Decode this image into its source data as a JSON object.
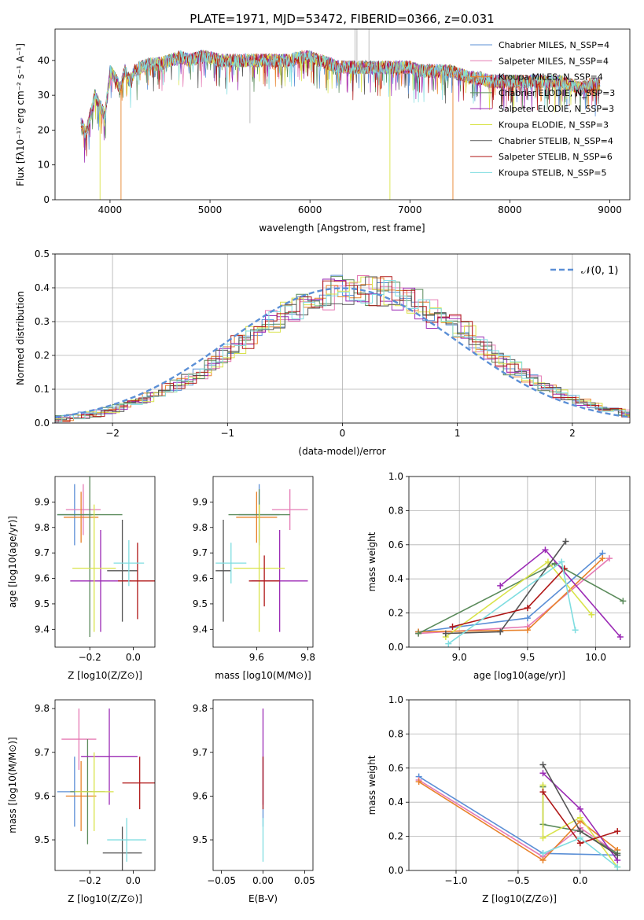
{
  "chart_data": [
    {
      "type": "line",
      "title": "PLATE=1971, MJD=53472, FIBERID=0366, z=0.031",
      "xlabel": "wavelength [Angstrom, rest frame]",
      "ylabel": "Flux [f_λ 10^-17 erg cm^-2 s^-1 A^-1]",
      "xlim": [
        3450,
        9200
      ],
      "ylim": [
        0,
        49
      ],
      "xticks": [
        4000,
        5000,
        6000,
        7000,
        8000,
        9000
      ],
      "yticks": [
        0,
        10,
        20,
        30,
        40
      ],
      "legend_position": "top-right",
      "spectrum_envelope": {
        "x": [
          3710,
          3760,
          3800,
          3850,
          3900,
          3950,
          4000,
          4050,
          4100,
          4150,
          4200,
          4250,
          4300,
          4400,
          4500,
          4600,
          4700,
          4800,
          4900,
          5000,
          5100,
          5200,
          5300,
          5400,
          5500,
          5600,
          5700,
          5800,
          5900,
          6000,
          6100,
          6200,
          6300,
          6400,
          6500,
          6600,
          6700,
          6800,
          6900,
          7000,
          7100,
          7200,
          7300,
          7400,
          7500,
          7600,
          7700,
          7800,
          7900,
          8000,
          8100,
          8200,
          8300,
          8400,
          8500,
          8600,
          8700,
          8800,
          8900
        ],
        "y": [
          22,
          19,
          24,
          30,
          27,
          24,
          37,
          35,
          32,
          37,
          34,
          37,
          38,
          39,
          39,
          40,
          41,
          40,
          41,
          41,
          40,
          40,
          40,
          40,
          40,
          40,
          40,
          40,
          41,
          41,
          40,
          39,
          38,
          38,
          38,
          38,
          38,
          38,
          38,
          38,
          37,
          37,
          37,
          37,
          36,
          35,
          35,
          34,
          34,
          34,
          34,
          34,
          34,
          34,
          34,
          33,
          32,
          33,
          33
        ]
      },
      "series": [
        {
          "name": "Chabrier MILES, N_SSP=4",
          "color": "#5b8fd6"
        },
        {
          "name": "Salpeter MILES, N_SSP=4",
          "color": "#e57ab4"
        },
        {
          "name": "Kroupa MILES, N_SSP=4",
          "color": "#e8822a"
        },
        {
          "name": "Chabrier ELODIE, N_SSP=3",
          "color": "#5a8a5a"
        },
        {
          "name": "Salpeter ELODIE, N_SSP=3",
          "color": "#9b2ab5"
        },
        {
          "name": "Kroupa ELODIE, N_SSP=3",
          "color": "#d9e34a"
        },
        {
          "name": "Chabrier STELIB, N_SSP=4",
          "color": "#555555"
        },
        {
          "name": "Salpeter STELIB, N_SSP=6",
          "color": "#b01818"
        },
        {
          "name": "Kroupa STELIB, N_SSP=5",
          "color": "#7fdde0"
        }
      ]
    },
    {
      "type": "bar",
      "xlabel": "(data-model)/error",
      "ylabel": "Normed distribution",
      "xlim": [
        -2.5,
        2.5
      ],
      "ylim": [
        0,
        0.5
      ],
      "xticks": [
        -2,
        -1,
        0,
        1,
        2
      ],
      "yticks": [
        0.0,
        0.1,
        0.2,
        0.3,
        0.4,
        0.5
      ],
      "grid": true,
      "legend_position": "top-right",
      "reference": {
        "name": "𝒩(0, 1)",
        "color": "#5b8fd6",
        "mean": 0,
        "sigma": 1
      }
    },
    {
      "type": "scatter",
      "xlabel": "Z [log10(Z/Z⊙)]",
      "ylabel": "age [log10(age/yr)]",
      "xlim": [
        -0.36,
        0.1
      ],
      "ylim": [
        9.33,
        10.0
      ],
      "xticks": [
        -0.2,
        0.0
      ],
      "yticks": [
        9.4,
        9.5,
        9.6,
        9.7,
        9.8,
        9.9
      ],
      "points": [
        {
          "series": "Chabrier MILES",
          "x": -0.27,
          "xerr": 0.08,
          "y": 9.85,
          "yerr": 0.12
        },
        {
          "series": "Salpeter MILES",
          "x": -0.23,
          "xerr": 0.08,
          "y": 9.87,
          "yerr": 0.1
        },
        {
          "series": "Kroupa MILES",
          "x": -0.24,
          "xerr": 0.08,
          "y": 9.84,
          "yerr": 0.1
        },
        {
          "series": "Chabrier ELODIE",
          "x": -0.2,
          "xerr": 0.15,
          "y": 9.85,
          "yerr": 0.48
        },
        {
          "series": "Salpeter ELODIE",
          "x": -0.15,
          "xerr": 0.14,
          "y": 9.59,
          "yerr": 0.2
        },
        {
          "series": "Kroupa ELODIE",
          "x": -0.18,
          "xerr": 0.1,
          "y": 9.64,
          "yerr": 0.25
        },
        {
          "series": "Chabrier STELIB",
          "x": -0.05,
          "xerr": 0.07,
          "y": 9.63,
          "yerr": 0.2
        },
        {
          "series": "Salpeter STELIB",
          "x": 0.02,
          "xerr": 0.09,
          "y": 9.59,
          "yerr": 0.15
        },
        {
          "series": "Kroupa STELIB",
          "x": -0.02,
          "xerr": 0.07,
          "y": 9.66,
          "yerr": 0.09
        }
      ]
    },
    {
      "type": "scatter",
      "xlabel": "mass [log10(M/M⊙)]",
      "ylabel": "",
      "xlim": [
        9.43,
        9.82
      ],
      "ylim": [
        9.33,
        10.0
      ],
      "xticks": [
        9.6,
        9.8
      ],
      "yticks": [
        9.4,
        9.5,
        9.6,
        9.7,
        9.8,
        9.9
      ],
      "points": [
        {
          "series": "Chabrier MILES",
          "x": 9.61,
          "xerr": 0.08,
          "y": 9.85,
          "yerr": 0.12
        },
        {
          "series": "Salpeter MILES",
          "x": 9.73,
          "xerr": 0.07,
          "y": 9.87,
          "yerr": 0.08
        },
        {
          "series": "Kroupa MILES",
          "x": 9.6,
          "xerr": 0.08,
          "y": 9.84,
          "yerr": 0.1
        },
        {
          "series": "Chabrier ELODIE",
          "x": 9.61,
          "xerr": 0.12,
          "y": 9.85,
          "yerr": 0.1
        },
        {
          "series": "Salpeter ELODIE",
          "x": 9.69,
          "xerr": 0.11,
          "y": 9.59,
          "yerr": 0.2
        },
        {
          "series": "Kroupa ELODIE",
          "x": 9.61,
          "xerr": 0.1,
          "y": 9.64,
          "yerr": 0.25
        },
        {
          "series": "Chabrier STELIB",
          "x": 9.47,
          "xerr": 0.03,
          "y": 9.63,
          "yerr": 0.2
        },
        {
          "series": "Salpeter STELIB",
          "x": 9.63,
          "xerr": 0.06,
          "y": 9.59,
          "yerr": 0.1
        },
        {
          "series": "Kroupa STELIB",
          "x": 9.5,
          "xerr": 0.06,
          "y": 9.66,
          "yerr": 0.08
        }
      ]
    },
    {
      "type": "line",
      "xlabel": "age [log10(age/yr)]",
      "ylabel": "mass weight",
      "xlim": [
        8.63,
        10.25
      ],
      "ylim": [
        0,
        1
      ],
      "xticks": [
        9.0,
        9.5,
        10.0
      ],
      "yticks": [
        0.0,
        0.2,
        0.4,
        0.6,
        0.8,
        1.0
      ],
      "grid": true,
      "series": [
        {
          "name": "Chabrier MILES",
          "x": [
            8.7,
            9.5,
            10.05
          ],
          "y": [
            0.09,
            0.17,
            0.55
          ]
        },
        {
          "name": "Salpeter MILES",
          "x": [
            8.7,
            9.5,
            10.1
          ],
          "y": [
            0.08,
            0.12,
            0.52
          ]
        },
        {
          "name": "Kroupa MILES",
          "x": [
            8.7,
            9.5,
            10.05
          ],
          "y": [
            0.09,
            0.1,
            0.52
          ]
        },
        {
          "name": "Chabrier ELODIE",
          "x": [
            8.7,
            9.7,
            10.2
          ],
          "y": [
            0.08,
            0.49,
            0.27
          ]
        },
        {
          "name": "Salpeter ELODIE",
          "x": [
            9.3,
            9.63,
            10.18
          ],
          "y": [
            0.36,
            0.57,
            0.06
          ]
        },
        {
          "name": "Kroupa ELODIE",
          "x": [
            8.9,
            9.65,
            9.97
          ],
          "y": [
            0.06,
            0.5,
            0.19
          ]
        },
        {
          "name": "Chabrier STELIB",
          "x": [
            8.9,
            9.3,
            9.78
          ],
          "y": [
            0.08,
            0.09,
            0.62
          ]
        },
        {
          "name": "Salpeter STELIB",
          "x": [
            8.95,
            9.5,
            9.77
          ],
          "y": [
            0.12,
            0.23,
            0.46
          ]
        },
        {
          "name": "Kroupa STELIB",
          "x": [
            8.92,
            9.75,
            9.85
          ],
          "y": [
            0.02,
            0.5,
            0.1
          ]
        }
      ]
    },
    {
      "type": "scatter",
      "xlabel": "Z [log10(Z/Z⊙)]",
      "ylabel": "mass [log10(M/M⊙)]",
      "xlim": [
        -0.36,
        0.1
      ],
      "ylim": [
        9.43,
        9.82
      ],
      "xticks": [
        -0.2,
        0.0
      ],
      "yticks": [
        9.5,
        9.6,
        9.7,
        9.8
      ],
      "points": [
        {
          "series": "Chabrier MILES",
          "x": -0.27,
          "xerr": 0.08,
          "y": 9.61,
          "yerr": 0.08
        },
        {
          "series": "Salpeter MILES",
          "x": -0.25,
          "xerr": 0.08,
          "y": 9.73,
          "yerr": 0.07
        },
        {
          "series": "Kroupa MILES",
          "x": -0.24,
          "xerr": 0.07,
          "y": 9.6,
          "yerr": 0.08
        },
        {
          "series": "Chabrier ELODIE",
          "x": -0.21,
          "xerr": 0.08,
          "y": 9.61,
          "yerr": 0.12
        },
        {
          "series": "Salpeter ELODIE",
          "x": -0.11,
          "xerr": 0.13,
          "y": 9.69,
          "yerr": 0.11
        },
        {
          "series": "Kroupa ELODIE",
          "x": -0.18,
          "xerr": 0.09,
          "y": 9.61,
          "yerr": 0.09
        },
        {
          "series": "Chabrier STELIB",
          "x": -0.05,
          "xerr": 0.09,
          "y": 9.47,
          "yerr": 0.06
        },
        {
          "series": "Salpeter STELIB",
          "x": 0.03,
          "xerr": 0.08,
          "y": 9.63,
          "yerr": 0.06
        },
        {
          "series": "Kroupa STELIB",
          "x": -0.03,
          "xerr": 0.09,
          "y": 9.5,
          "yerr": 0.05
        }
      ]
    },
    {
      "type": "scatter",
      "xlabel": "E(B-V)",
      "ylabel": "",
      "xlim": [
        -0.06,
        0.06
      ],
      "ylim": [
        9.43,
        9.82
      ],
      "xticks": [
        -0.05,
        0.0,
        0.05
      ],
      "yticks": [
        9.5,
        9.6,
        9.7,
        9.8
      ],
      "points": [
        {
          "series": "Chabrier MILES",
          "x": 0,
          "xerr": 0,
          "y": 9.61,
          "yerr": 0.08
        },
        {
          "series": "Salpeter ELODIE",
          "x": 0,
          "xerr": 0,
          "y": 9.69,
          "yerr": 0.11
        },
        {
          "series": "Salpeter STELIB",
          "x": 0,
          "xerr": 0,
          "y": 9.63,
          "yerr": 0.06
        },
        {
          "series": "Kroupa STELIB",
          "x": 0,
          "xerr": 0,
          "y": 9.5,
          "yerr": 0.05
        }
      ]
    },
    {
      "type": "line",
      "xlabel": "Z [log10(Z/Z⊙)]",
      "ylabel": "mass weight",
      "xlim": [
        -1.38,
        0.4
      ],
      "ylim": [
        0,
        1
      ],
      "xticks": [
        -1.0,
        -0.5,
        0.0
      ],
      "yticks": [
        0.0,
        0.2,
        0.4,
        0.6,
        0.8,
        1.0
      ],
      "grid": true,
      "series": [
        {
          "name": "Chabrier MILES",
          "x": [
            -1.3,
            -0.3,
            0.3
          ],
          "y": [
            0.55,
            0.1,
            0.09
          ]
        },
        {
          "name": "Salpeter MILES",
          "x": [
            -1.3,
            -0.3,
            0.0,
            0.3
          ],
          "y": [
            0.53,
            0.08,
            0.25,
            0.1
          ]
        },
        {
          "name": "Kroupa MILES",
          "x": [
            -1.3,
            -0.3,
            0.0,
            0.3
          ],
          "y": [
            0.52,
            0.06,
            0.29,
            0.12
          ]
        },
        {
          "name": "Chabrier ELODIE",
          "x": [
            -0.3,
            -0.3,
            0.0,
            0.3
          ],
          "y": [
            0.49,
            0.27,
            0.23,
            0.1
          ]
        },
        {
          "name": "Salpeter ELODIE",
          "x": [
            -0.3,
            0.0,
            0.3
          ],
          "y": [
            0.57,
            0.36,
            0.06
          ]
        },
        {
          "name": "Kroupa ELODIE",
          "x": [
            -0.3,
            -0.3,
            0.0,
            0.3
          ],
          "y": [
            0.5,
            0.19,
            0.31,
            0.02
          ]
        },
        {
          "name": "Chabrier STELIB",
          "x": [
            -0.3,
            0.0,
            0.3
          ],
          "y": [
            0.62,
            0.23,
            0.09
          ]
        },
        {
          "name": "Salpeter STELIB",
          "x": [
            -0.3,
            0.0,
            0.3
          ],
          "y": [
            0.46,
            0.16,
            0.23
          ]
        },
        {
          "name": "Kroupa STELIB",
          "x": [
            -0.3,
            0.0,
            0.3
          ],
          "y": [
            0.1,
            0.19,
            0.02
          ]
        }
      ]
    }
  ]
}
